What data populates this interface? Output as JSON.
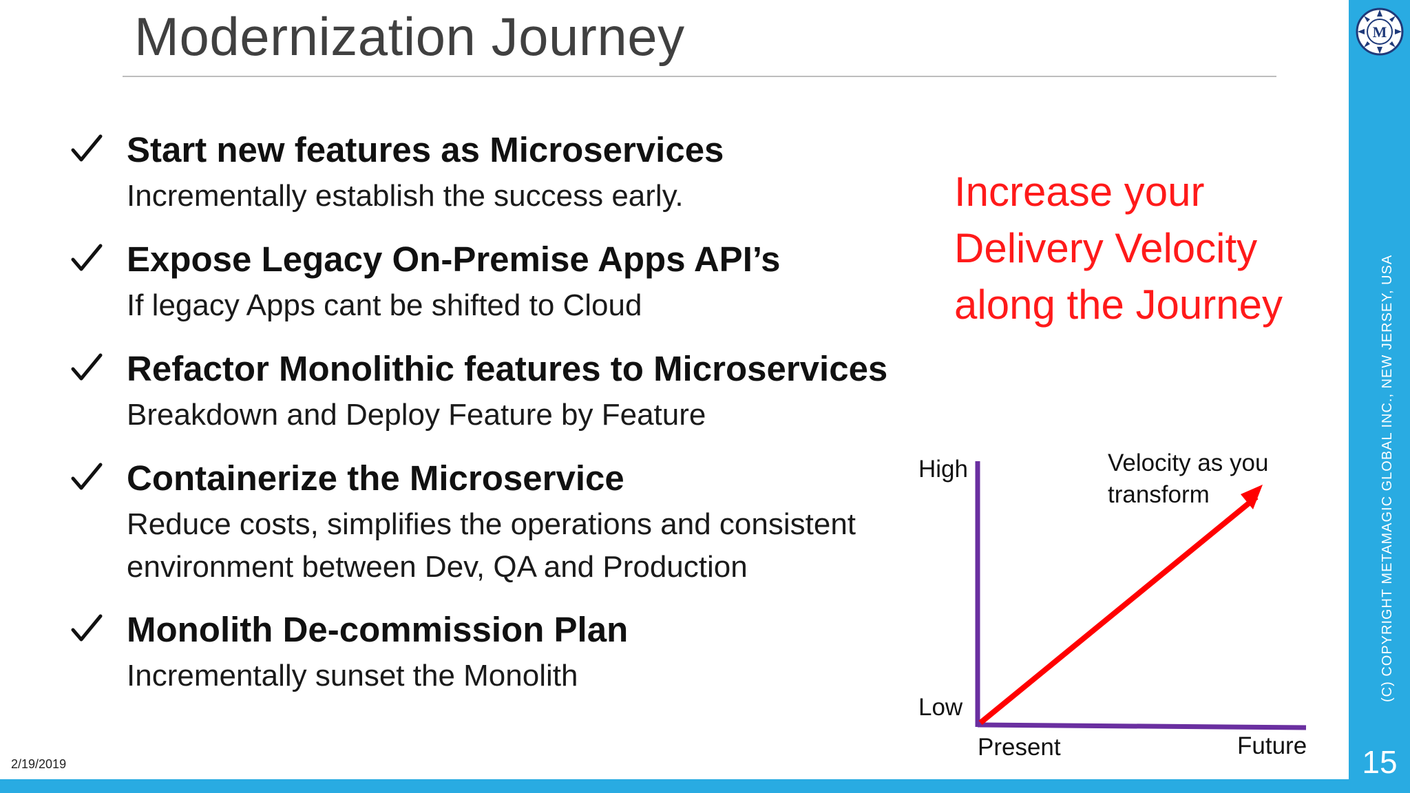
{
  "slide": {
    "title": "Modernization Journey",
    "date": "2/19/2019",
    "page_number": "15",
    "copyright": "(C) COPYRIGHT METAMAGIC GLOBAL INC., NEW JERSEY, USA",
    "logo_text": "M"
  },
  "bullets": [
    {
      "heading": "Start new features as Microservices",
      "desc": [
        "Incrementally establish the success early."
      ]
    },
    {
      "heading": "Expose Legacy On-Premise Apps API’s",
      "desc": [
        "If legacy Apps cant be shifted to Cloud"
      ]
    },
    {
      "heading": "Refactor Monolithic features to Microservices",
      "desc": [
        "Breakdown and Deploy Feature by Feature"
      ]
    },
    {
      "heading": "Containerize the Microservice",
      "desc": [
        "Reduce costs, simplifies the operations and consistent",
        "environment between Dev, QA and Production"
      ]
    },
    {
      "heading": "Monolith De-commission Plan",
      "desc": [
        "Incrementally sunset the Monolith"
      ]
    }
  ],
  "callout": [
    "Increase your",
    "Delivery Velocity",
    "along the Journey"
  ],
  "chart": {
    "y_high": "High",
    "y_low": "Low",
    "x_start": "Present",
    "x_end": "Future",
    "annotation": [
      "Velocity as you",
      "transform"
    ]
  },
  "colors": {
    "accent_bar": "#29abe2",
    "callout": "#ff1a1a",
    "axis": "#6a2fa0",
    "arrow": "#ff0000"
  }
}
